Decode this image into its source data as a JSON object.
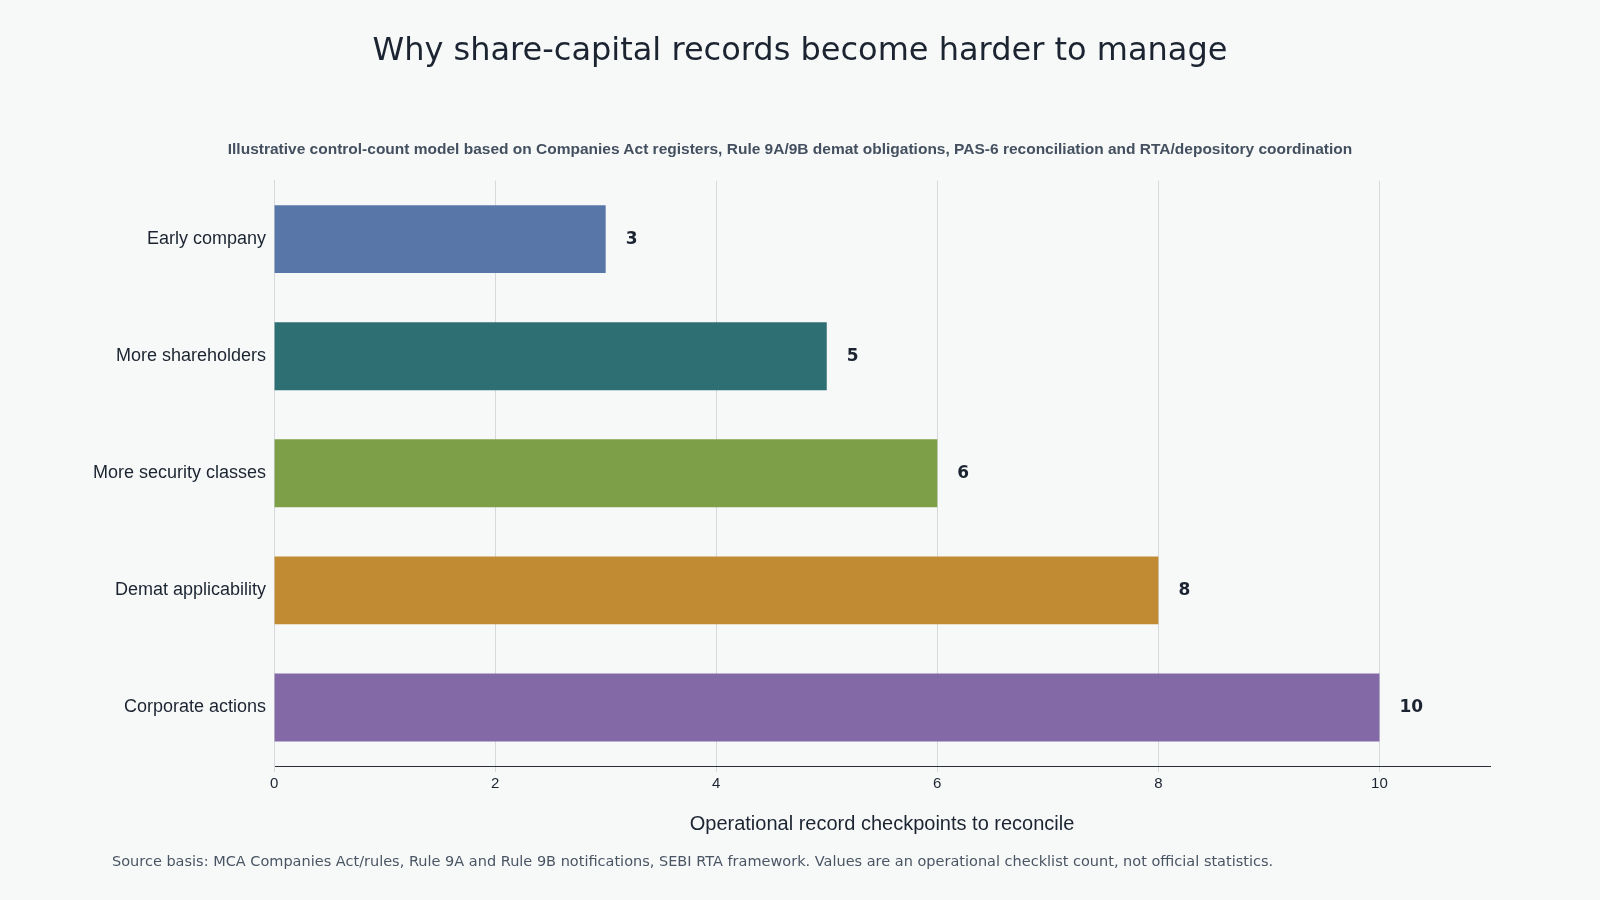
{
  "chart_data": {
    "type": "bar",
    "orientation": "horizontal",
    "title": "Why share-capital records become harder to manage",
    "subtitle": "Illustrative control-count model based on Companies Act registers, Rule 9A/9B demat obligations, PAS-6 reconciliation and RTA/depository coordination",
    "xlabel": "Operational record checkpoints to reconcile",
    "categories": [
      "Early company",
      "More shareholders",
      "More security classes",
      "Demat applicability",
      "Corporate actions"
    ],
    "values": [
      3,
      5,
      6,
      8,
      10
    ],
    "colors": [
      "#5876a8",
      "#2e6f73",
      "#7c9f48",
      "#c18b33",
      "#8469a7"
    ],
    "xlim": [
      0,
      11
    ],
    "xticks": [
      0,
      2,
      4,
      6,
      8,
      10
    ],
    "grid": "x",
    "data_labels": true,
    "legend": false,
    "annotations": [
      "Source basis: MCA Companies Act/rules, Rule 9A and Rule 9B notifications, SEBI RTA framework. Values are an operational checklist count, not official statistics."
    ]
  }
}
